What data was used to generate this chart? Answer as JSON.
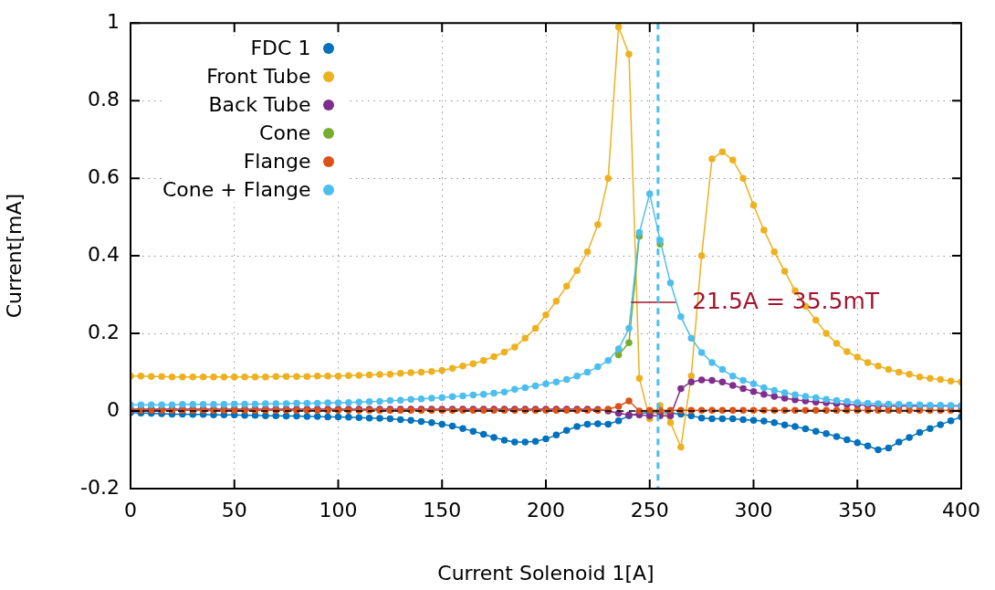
{
  "chart_data": {
    "type": "line",
    "xlabel": "Current Solenoid 1[A]",
    "ylabel": "Current[mA]",
    "x": [
      0,
      5,
      10,
      15,
      20,
      25,
      30,
      35,
      40,
      45,
      50,
      55,
      60,
      65,
      70,
      75,
      80,
      85,
      90,
      95,
      100,
      105,
      110,
      115,
      120,
      125,
      130,
      135,
      140,
      145,
      150,
      155,
      160,
      165,
      170,
      175,
      180,
      185,
      190,
      195,
      200,
      205,
      210,
      215,
      220,
      225,
      230,
      235,
      240,
      245,
      250,
      255,
      260,
      265,
      270,
      275,
      280,
      285,
      290,
      295,
      300,
      305,
      310,
      315,
      320,
      325,
      330,
      335,
      340,
      345,
      350,
      355,
      360,
      365,
      370,
      375,
      380,
      385,
      390,
      395,
      400
    ],
    "series": [
      {
        "name": "FDC 1",
        "color": "#0072bd",
        "values": [
          -0.004,
          -0.005,
          -0.006,
          -0.007,
          -0.008,
          -0.008,
          -0.009,
          -0.009,
          -0.01,
          -0.01,
          -0.01,
          -0.011,
          -0.011,
          -0.012,
          -0.012,
          -0.013,
          -0.013,
          -0.014,
          -0.014,
          -0.015,
          -0.015,
          -0.016,
          -0.017,
          -0.018,
          -0.019,
          -0.02,
          -0.022,
          -0.024,
          -0.027,
          -0.03,
          -0.034,
          -0.039,
          -0.045,
          -0.052,
          -0.06,
          -0.068,
          -0.075,
          -0.08,
          -0.08,
          -0.078,
          -0.072,
          -0.062,
          -0.05,
          -0.04,
          -0.034,
          -0.033,
          -0.034,
          -0.025,
          -0.012,
          -0.006,
          -0.004,
          -0.004,
          -0.005,
          -0.008,
          -0.012,
          -0.018,
          -0.02,
          -0.02,
          -0.02,
          -0.022,
          -0.024,
          -0.026,
          -0.03,
          -0.036,
          -0.04,
          -0.046,
          -0.052,
          -0.058,
          -0.066,
          -0.074,
          -0.082,
          -0.09,
          -0.1,
          -0.095,
          -0.08,
          -0.068,
          -0.055,
          -0.045,
          -0.035,
          -0.025,
          -0.015
        ]
      },
      {
        "name": "Front Tube",
        "color": "#edb120",
        "values": [
          0.09,
          0.09,
          0.089,
          0.089,
          0.088,
          0.088,
          0.088,
          0.088,
          0.088,
          0.088,
          0.088,
          0.088,
          0.088,
          0.088,
          0.089,
          0.089,
          0.089,
          0.089,
          0.09,
          0.09,
          0.09,
          0.091,
          0.092,
          0.093,
          0.094,
          0.095,
          0.097,
          0.099,
          0.1,
          0.102,
          0.105,
          0.11,
          0.116,
          0.122,
          0.13,
          0.14,
          0.152,
          0.165,
          0.188,
          0.213,
          0.248,
          0.283,
          0.322,
          0.362,
          0.41,
          0.48,
          0.6,
          0.99,
          0.92,
          0.084,
          -0.02,
          0.014,
          -0.03,
          -0.093,
          0.09,
          0.4,
          0.65,
          0.668,
          0.647,
          0.6,
          0.53,
          0.466,
          0.41,
          0.36,
          0.31,
          0.27,
          0.234,
          0.2,
          0.174,
          0.153,
          0.139,
          0.125,
          0.116,
          0.107,
          0.1,
          0.095,
          0.088,
          0.084,
          0.081,
          0.077,
          0.075
        ]
      },
      {
        "name": "Back Tube",
        "color": "#7e2f8e",
        "values": [
          0.005,
          0.005,
          0.005,
          0.005,
          0.005,
          0.005,
          0.005,
          0.005,
          0.005,
          0.005,
          0.005,
          0.005,
          0.005,
          0.005,
          0.005,
          0.005,
          0.005,
          0.005,
          0.005,
          0.005,
          0.005,
          0.005,
          0.005,
          0.005,
          0.005,
          0.005,
          0.005,
          0.005,
          0.005,
          0.005,
          0.005,
          0.005,
          0.005,
          0.005,
          0.005,
          0.005,
          0.005,
          0.005,
          0.005,
          0.005,
          0.005,
          0.005,
          0.005,
          0.005,
          0.005,
          0.004,
          0.0,
          -0.006,
          -0.01,
          -0.01,
          -0.012,
          -0.012,
          -0.012,
          0.058,
          0.075,
          0.08,
          0.079,
          0.075,
          0.066,
          0.058,
          0.05,
          0.043,
          0.038,
          0.033,
          0.029,
          0.026,
          0.023,
          0.021,
          0.019,
          0.017,
          0.016,
          0.015,
          0.013,
          0.013,
          0.013,
          0.013,
          0.013,
          0.013,
          0.013,
          0.013,
          0.013
        ]
      },
      {
        "name": "Cone",
        "color": "#77ac30",
        "values": [
          null,
          null,
          null,
          null,
          null,
          null,
          null,
          null,
          null,
          null,
          null,
          null,
          null,
          null,
          null,
          null,
          null,
          null,
          null,
          null,
          null,
          null,
          null,
          null,
          null,
          null,
          null,
          null,
          null,
          null,
          null,
          null,
          null,
          null,
          null,
          null,
          null,
          null,
          null,
          null,
          null,
          null,
          null,
          null,
          null,
          null,
          null,
          0.145,
          0.176,
          0.45,
          null,
          0.43,
          null,
          null,
          null,
          null,
          null,
          null,
          null,
          null,
          null,
          null,
          null,
          null,
          null,
          null,
          null,
          null,
          null,
          null,
          null,
          null,
          null,
          null,
          null,
          null,
          null,
          null,
          null,
          null,
          null
        ]
      },
      {
        "name": "Flange",
        "color": "#d95319",
        "values": [
          0.002,
          0.002,
          0.002,
          0.002,
          0.002,
          0.002,
          0.002,
          0.002,
          0.002,
          0.002,
          0.002,
          0.002,
          0.002,
          0.002,
          0.002,
          0.002,
          0.002,
          0.002,
          0.002,
          0.002,
          0.002,
          0.002,
          0.002,
          0.002,
          0.002,
          0.002,
          0.002,
          0.002,
          0.002,
          0.002,
          0.002,
          0.002,
          0.002,
          0.002,
          0.002,
          0.002,
          0.002,
          0.002,
          0.002,
          0.002,
          0.002,
          0.002,
          0.002,
          0.002,
          0.002,
          0.002,
          0.005,
          0.012,
          0.026,
          0.0,
          0.002,
          0.002,
          0.002,
          0.002,
          0.002,
          0.002,
          0.002,
          0.002,
          0.002,
          0.002,
          0.002,
          0.002,
          0.002,
          0.002,
          0.002,
          0.002,
          0.002,
          0.002,
          0.002,
          0.002,
          0.002,
          0.002,
          0.002,
          0.002,
          0.002,
          0.002,
          0.002,
          0.002,
          0.002,
          0.002,
          0.002
        ]
      },
      {
        "name": "Cone + Flange",
        "color": "#4dbeee",
        "values": [
          0.016,
          0.016,
          0.016,
          0.016,
          0.016,
          0.017,
          0.017,
          0.017,
          0.017,
          0.017,
          0.018,
          0.018,
          0.018,
          0.019,
          0.019,
          0.019,
          0.02,
          0.02,
          0.02,
          0.021,
          0.021,
          0.022,
          0.023,
          0.024,
          0.025,
          0.027,
          0.028,
          0.03,
          0.031,
          0.033,
          0.035,
          0.037,
          0.039,
          0.041,
          0.043,
          0.046,
          0.049,
          0.056,
          0.06,
          0.065,
          0.07,
          0.075,
          0.081,
          0.09,
          0.1,
          0.114,
          0.13,
          0.16,
          0.213,
          0.46,
          0.56,
          0.44,
          0.33,
          0.243,
          0.188,
          0.151,
          0.125,
          0.107,
          0.09,
          0.079,
          0.07,
          0.06,
          0.053,
          0.047,
          0.042,
          0.038,
          0.034,
          0.03,
          0.027,
          0.025,
          0.022,
          0.02,
          0.019,
          0.018,
          0.017,
          0.016,
          0.016,
          0.015,
          0.015,
          0.014,
          0.014
        ]
      },
      {
        "type": "line",
        "marker": "none",
        "color": "#a2142f",
        "x": [
          241,
          262.5
        ],
        "values": [
          0.28,
          0.28
        ]
      }
    ],
    "annotations": [
      {
        "text": "21.5A = 35.5mT",
        "x": 262.5,
        "y": 0.28
      }
    ],
    "ref_lines": [
      {
        "axis": "x",
        "value": 254,
        "color": "#4dbeee",
        "line_style": "dashed"
      },
      {
        "axis": "y",
        "value": 0,
        "color": "#000000",
        "line_style": "dashed"
      }
    ],
    "xlim": [
      0,
      400
    ],
    "xticks": [
      0,
      50,
      100,
      150,
      200,
      250,
      300,
      350,
      400
    ],
    "ylim": [
      -0.2,
      1
    ],
    "yticks": [
      -0.2,
      0,
      0.2,
      0.4,
      0.6,
      0.8,
      1
    ],
    "grid": true,
    "legend": "top left",
    "marker": "circle",
    "line_style": "solid"
  }
}
